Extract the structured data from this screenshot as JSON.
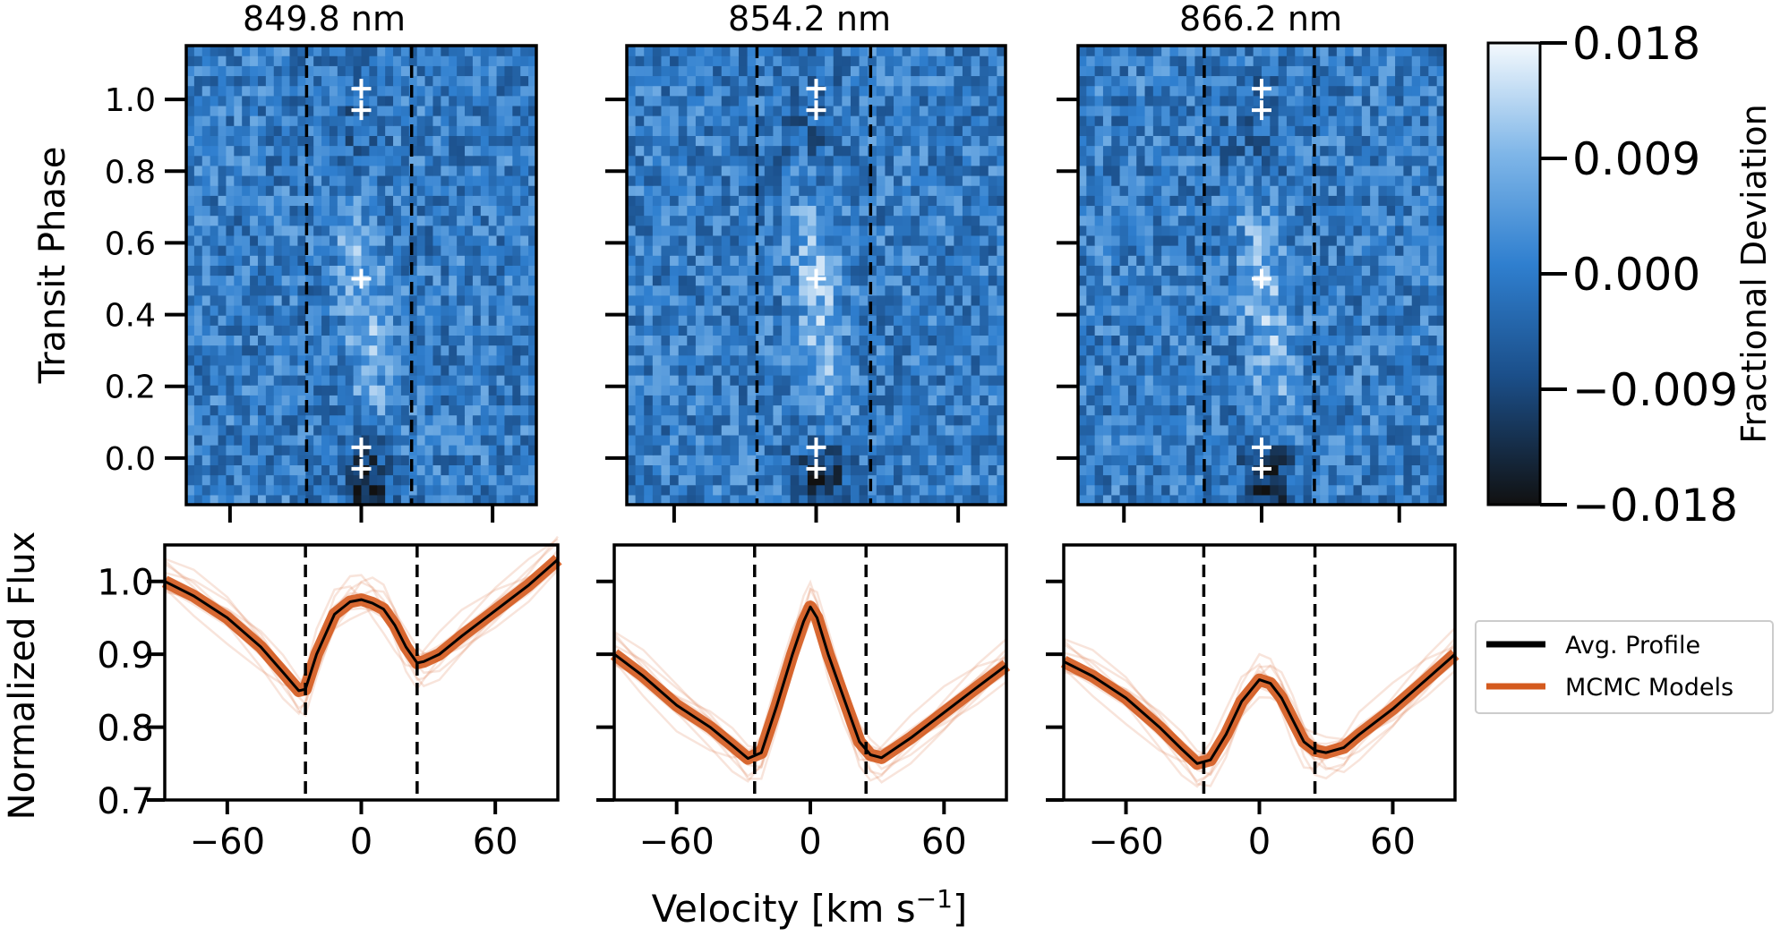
{
  "figure": {
    "ylabel_top": "Transit Phase",
    "ylabel_bottom": "Normalized Flux",
    "xlabel_main": "Velocity [km s",
    "xlabel_sup": "−1",
    "xlabel_end": "]",
    "legend": {
      "position": "right",
      "entries": [
        "Avg. Profile",
        "MCMC Models"
      ]
    },
    "colors": {
      "avg_profile": "#000000",
      "mcmc_models": "#d45a1e",
      "frame": "#000000"
    }
  },
  "colorbar": {
    "label": "Fractional Deviation",
    "tick_values": [
      0.018,
      0.009,
      0.0,
      -0.009,
      -0.018
    ],
    "tick_labels": [
      "0.018",
      "0.009",
      "0.000",
      "−0.009",
      "−0.018"
    ],
    "range": [
      -0.018,
      0.018
    ],
    "cmap": [
      "#111111",
      "#1b4f8a",
      "#2f7fcf",
      "#7fb6e8",
      "#f4f9fd"
    ]
  },
  "chart_data": [
    {
      "type": "heatmap",
      "title": "849.8 nm",
      "xlim": [
        -80,
        80
      ],
      "ylim": [
        -0.13,
        1.15
      ],
      "y_ticks": [
        0.0,
        0.2,
        0.4,
        0.6,
        0.8,
        1.0
      ],
      "y_tick_labels": [
        "0.0",
        "0.2",
        "0.4",
        "0.6",
        "0.8",
        "1.0"
      ],
      "x_ticks": [
        -60,
        0,
        60
      ],
      "vlines": [
        -25,
        23
      ],
      "markers": [
        {
          "x": 0,
          "y": 0.0
        },
        {
          "x": 0,
          "y": 0.5
        },
        {
          "x": 0,
          "y": 1.0
        }
      ]
    },
    {
      "type": "heatmap",
      "title": "854.2 nm",
      "xlim": [
        -80,
        80
      ],
      "ylim": [
        -0.13,
        1.15
      ],
      "y_ticks": [
        0.0,
        0.2,
        0.4,
        0.6,
        0.8,
        1.0
      ],
      "x_ticks": [
        -60,
        0,
        60
      ],
      "vlines": [
        -25,
        23
      ],
      "markers": [
        {
          "x": 0,
          "y": 0.0
        },
        {
          "x": 0,
          "y": 0.5
        },
        {
          "x": 0,
          "y": 1.0
        }
      ]
    },
    {
      "type": "heatmap",
      "title": "866.2 nm",
      "xlim": [
        -80,
        80
      ],
      "ylim": [
        -0.13,
        1.15
      ],
      "y_ticks": [
        0.0,
        0.2,
        0.4,
        0.6,
        0.8,
        1.0
      ],
      "x_ticks": [
        -60,
        0,
        60
      ],
      "vlines": [
        -25,
        23
      ],
      "markers": [
        {
          "x": 0,
          "y": 0.0
        },
        {
          "x": 0,
          "y": 0.5
        },
        {
          "x": 0,
          "y": 1.0
        }
      ]
    },
    {
      "type": "line",
      "xlim": [
        -88,
        88
      ],
      "ylim": [
        0.7,
        1.05
      ],
      "x_ticks": [
        -60,
        0,
        60
      ],
      "x_tick_labels": [
        "−60",
        "0",
        "60"
      ],
      "y_ticks": [
        0.7,
        0.8,
        0.9,
        1.0
      ],
      "y_tick_labels": [
        "0.7",
        "0.8",
        "0.9",
        "1.0"
      ],
      "vlines": [
        -25,
        25
      ],
      "series": [
        {
          "name": "Avg. Profile",
          "x": [
            -88,
            -75,
            -60,
            -45,
            -35,
            -28,
            -25,
            -20,
            -12,
            -5,
            0,
            5,
            10,
            15,
            20,
            25,
            28,
            35,
            45,
            60,
            75,
            88
          ],
          "y": [
            1.0,
            0.98,
            0.95,
            0.91,
            0.875,
            0.85,
            0.852,
            0.9,
            0.955,
            0.972,
            0.975,
            0.97,
            0.962,
            0.94,
            0.91,
            0.888,
            0.89,
            0.9,
            0.925,
            0.96,
            0.995,
            1.03
          ]
        }
      ]
    },
    {
      "type": "line",
      "xlim": [
        -88,
        88
      ],
      "ylim": [
        0.7,
        1.05
      ],
      "x_ticks": [
        -60,
        0,
        60
      ],
      "x_tick_labels": [
        "−60",
        "0",
        "60"
      ],
      "y_ticks": [
        0.7,
        0.8,
        0.9,
        1.0
      ],
      "vlines": [
        -25,
        25
      ],
      "series": [
        {
          "name": "Avg. Profile",
          "x": [
            -88,
            -75,
            -60,
            -45,
            -35,
            -28,
            -22,
            -15,
            -8,
            -3,
            0,
            3,
            8,
            15,
            22,
            27,
            32,
            45,
            60,
            75,
            88
          ],
          "y": [
            0.9,
            0.87,
            0.83,
            0.8,
            0.775,
            0.757,
            0.765,
            0.83,
            0.9,
            0.945,
            0.965,
            0.95,
            0.9,
            0.84,
            0.78,
            0.762,
            0.758,
            0.785,
            0.82,
            0.855,
            0.885
          ]
        }
      ]
    },
    {
      "type": "line",
      "xlim": [
        -88,
        88
      ],
      "ylim": [
        0.7,
        1.05
      ],
      "x_ticks": [
        -60,
        0,
        60
      ],
      "x_tick_labels": [
        "−60",
        "0",
        "60"
      ],
      "y_ticks": [
        0.7,
        0.8,
        0.9,
        1.0
      ],
      "vlines": [
        -25,
        25
      ],
      "series": [
        {
          "name": "Avg. Profile",
          "x": [
            -88,
            -75,
            -60,
            -45,
            -35,
            -28,
            -22,
            -15,
            -8,
            0,
            5,
            10,
            15,
            20,
            25,
            30,
            38,
            45,
            60,
            75,
            88
          ],
          "y": [
            0.89,
            0.87,
            0.84,
            0.8,
            0.77,
            0.75,
            0.755,
            0.79,
            0.835,
            0.865,
            0.86,
            0.84,
            0.81,
            0.78,
            0.768,
            0.765,
            0.772,
            0.79,
            0.825,
            0.865,
            0.9
          ]
        }
      ]
    }
  ]
}
